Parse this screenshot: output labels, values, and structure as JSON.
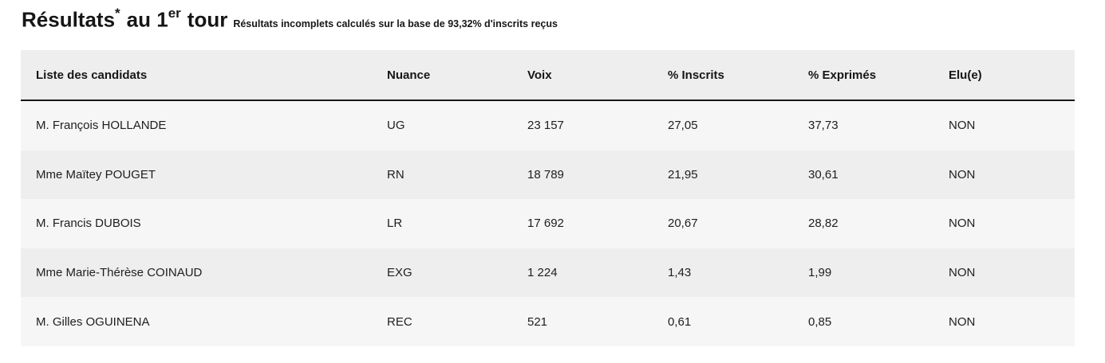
{
  "title": {
    "main": "Résultats",
    "asterisk": "*",
    "middle": "au 1",
    "superscript": "er",
    "end": "tour",
    "subtitle": "Résultats incomplets calculés sur la base de 93,32% d'inscrits reçus"
  },
  "table": {
    "headers": [
      "Liste des candidats",
      "Nuance",
      "Voix",
      "% Inscrits",
      "% Exprimés",
      "Elu(e)"
    ],
    "rows": [
      [
        "M. François HOLLANDE",
        "UG",
        "23 157",
        "27,05",
        "37,73",
        "NON"
      ],
      [
        "Mme Maïtey POUGET",
        "RN",
        "18 789",
        "21,95",
        "30,61",
        "NON"
      ],
      [
        "M. Francis DUBOIS",
        "LR",
        "17 692",
        "20,67",
        "28,82",
        "NON"
      ],
      [
        "Mme Marie-Thérèse COINAUD",
        "EXG",
        "1 224",
        "1,43",
        "1,99",
        "NON"
      ],
      [
        "M. Gilles OGUINENA",
        "REC",
        "521",
        "0,61",
        "0,85",
        "NON"
      ]
    ]
  },
  "colors": {
    "header_bg": "#eeeeee",
    "row_light": "#f6f6f6",
    "row_dark": "#eeeeee",
    "text": "#1e1e1e",
    "rule": "#161616"
  }
}
